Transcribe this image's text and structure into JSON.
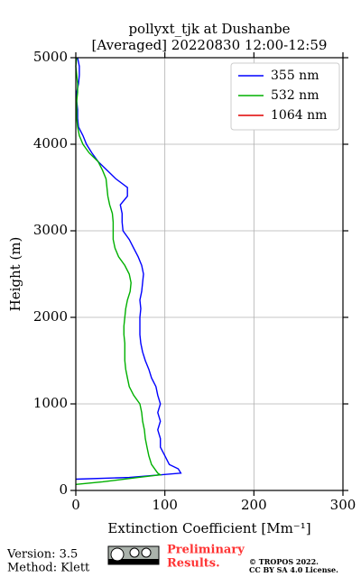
{
  "chart_data": {
    "type": "profile",
    "title": [
      "pollyxt_tjk at Dushanbe",
      "[Averaged] 20220830 12:00-12:59"
    ],
    "xlabel": "Extinction Coefficient [Mm⁻¹]",
    "ylabel": "Height (m)",
    "xlim": [
      0,
      300
    ],
    "xticks": [
      0,
      100,
      200,
      300
    ],
    "ylim": [
      0,
      5000
    ],
    "yticks": [
      0,
      1000,
      2000,
      3000,
      4000,
      5000
    ],
    "grid": true,
    "legend": "upper right",
    "series": [
      {
        "name": "355 nm",
        "color": "#0000ff",
        "y": [
          130,
          150,
          200,
          250,
          300,
          400,
          500,
          600,
          700,
          800,
          900,
          1000,
          1100,
          1200,
          1300,
          1400,
          1500,
          1600,
          1700,
          1800,
          1900,
          2000,
          2100,
          2200,
          2300,
          2400,
          2500,
          2600,
          2700,
          2800,
          2900,
          3000,
          3100,
          3200,
          3300,
          3400,
          3500,
          3600,
          3700,
          3800,
          3900,
          4000,
          4100,
          4200,
          4300,
          4400,
          4500,
          4600,
          4700,
          4800,
          4900,
          5000
        ],
        "values": [
          0,
          60,
          118,
          115,
          105,
          100,
          95,
          95,
          92,
          95,
          92,
          95,
          92,
          90,
          85,
          82,
          78,
          75,
          73,
          72,
          72,
          72,
          73,
          72,
          74,
          75,
          76,
          74,
          70,
          65,
          60,
          53,
          52,
          52,
          50,
          58,
          58,
          45,
          35,
          25,
          18,
          12,
          8,
          3,
          2,
          2,
          1,
          1,
          3,
          4,
          4,
          2
        ]
      },
      {
        "name": "532 nm",
        "color": "#00b000",
        "y": [
          70,
          100,
          150,
          180,
          200,
          300,
          400,
          500,
          600,
          700,
          800,
          900,
          1000,
          1100,
          1200,
          1300,
          1400,
          1500,
          1600,
          1700,
          1800,
          1900,
          2000,
          2100,
          2200,
          2300,
          2400,
          2500,
          2600,
          2700,
          2800,
          2900,
          3000,
          3100,
          3200,
          3300,
          3400,
          3500,
          3600,
          3700,
          3800,
          3900,
          4000,
          4100,
          4200,
          4300,
          4400,
          4500,
          4600,
          4700,
          4800,
          4900,
          5000
        ],
        "values": [
          0,
          30,
          70,
          95,
          92,
          85,
          82,
          80,
          78,
          77,
          75,
          74,
          72,
          65,
          60,
          58,
          56,
          55,
          55,
          55,
          54,
          54,
          55,
          56,
          58,
          61,
          62,
          60,
          55,
          48,
          44,
          42,
          42,
          42,
          41,
          38,
          36,
          35,
          34,
          30,
          25,
          15,
          8,
          4,
          2,
          1,
          1,
          1,
          2,
          2,
          1,
          0,
          1
        ]
      },
      {
        "name": "1064 nm",
        "color": "#e00000",
        "y": [],
        "values": []
      }
    ]
  },
  "footer": {
    "version": "Version: 3.5",
    "method": "Method: Klett",
    "preliminary": [
      "Preliminary",
      "Results."
    ],
    "copyright": [
      "© TROPOS 2022.",
      "CC BY SA 4.0 License."
    ]
  }
}
